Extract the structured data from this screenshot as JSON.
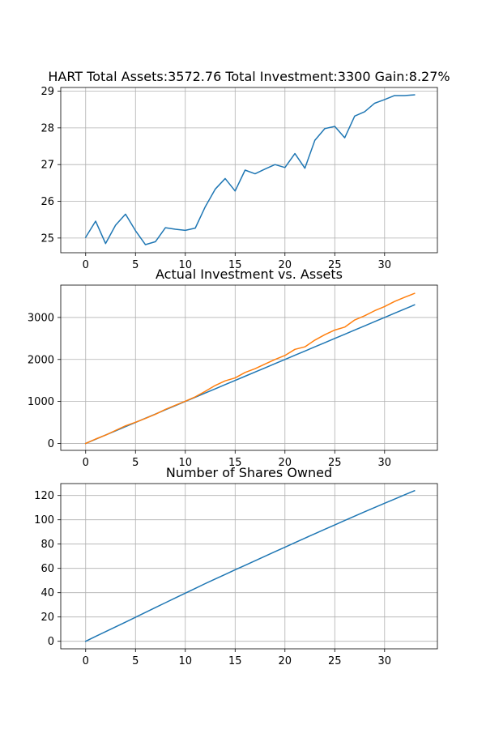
{
  "chart_data": [
    {
      "type": "line",
      "title": "HART Total Assets:3572.76  Total Investment:3300  Gain:8.27%",
      "xlabel": "",
      "ylabel": "",
      "xlim": [
        -2.5,
        35.3
      ],
      "ylim": [
        24.6,
        29.1
      ],
      "xticks": [
        0,
        5,
        10,
        15,
        20,
        25,
        30
      ],
      "yticks": [
        25,
        26,
        27,
        28,
        29
      ],
      "grid": true,
      "series": [
        {
          "color": "#1f77b4",
          "x": [
            0,
            1,
            2,
            3,
            4,
            5,
            6,
            7,
            8,
            9,
            10,
            11,
            12,
            13,
            14,
            15,
            16,
            17,
            18,
            19,
            20,
            21,
            22,
            23,
            24,
            25,
            26,
            27,
            28,
            29,
            30,
            31,
            32,
            33
          ],
          "values": [
            25.02,
            25.46,
            24.85,
            25.35,
            25.65,
            25.2,
            24.82,
            24.9,
            25.28,
            25.24,
            25.21,
            25.27,
            25.85,
            26.33,
            26.62,
            26.28,
            26.85,
            26.75,
            26.88,
            27.0,
            26.92,
            27.3,
            26.9,
            27.66,
            27.98,
            28.04,
            27.73,
            28.32,
            28.44,
            28.67,
            28.77,
            28.88,
            28.88,
            28.9
          ]
        }
      ]
    },
    {
      "type": "line",
      "title": "Actual Investment vs. Assets",
      "xlabel": "",
      "ylabel": "",
      "xlim": [
        -2.5,
        35.3
      ],
      "ylim": [
        -165,
        3770
      ],
      "xticks": [
        0,
        5,
        10,
        15,
        20,
        25,
        30
      ],
      "yticks": [
        0,
        1000,
        2000,
        3000
      ],
      "grid": true,
      "series": [
        {
          "color": "#1f77b4",
          "x": [
            0,
            1,
            2,
            3,
            4,
            5,
            6,
            7,
            8,
            9,
            10,
            11,
            12,
            13,
            14,
            15,
            16,
            17,
            18,
            19,
            20,
            21,
            22,
            23,
            24,
            25,
            26,
            27,
            28,
            29,
            30,
            31,
            32,
            33
          ],
          "values": [
            0,
            100,
            200,
            300,
            400,
            500,
            600,
            700,
            800,
            900,
            1000,
            1100,
            1200,
            1300,
            1400,
            1500,
            1600,
            1700,
            1800,
            1900,
            2000,
            2100,
            2200,
            2300,
            2400,
            2500,
            2600,
            2700,
            2800,
            2900,
            3000,
            3100,
            3200,
            3300
          ]
        },
        {
          "color": "#ff7f0e",
          "x": [
            0,
            1,
            2,
            3,
            4,
            5,
            6,
            7,
            8,
            9,
            10,
            11,
            12,
            13,
            14,
            15,
            16,
            17,
            18,
            19,
            20,
            21,
            22,
            23,
            24,
            25,
            26,
            27,
            28,
            29,
            30,
            31,
            32,
            33
          ],
          "values": [
            0,
            105,
            198,
            310,
            420,
            505,
            595,
            695,
            810,
            910,
            1005,
            1110,
            1240,
            1380,
            1490,
            1560,
            1690,
            1780,
            1890,
            2000,
            2095,
            2240,
            2300,
            2460,
            2590,
            2700,
            2770,
            2940,
            3040,
            3160,
            3260,
            3380,
            3480,
            3572.76
          ]
        }
      ]
    },
    {
      "type": "line",
      "title": "Number of Shares Owned",
      "xlabel": "",
      "ylabel": "",
      "xlim": [
        -2.5,
        35.3
      ],
      "ylim": [
        -6.2,
        129.8
      ],
      "xticks": [
        0,
        5,
        10,
        15,
        20,
        25,
        30
      ],
      "yticks": [
        0,
        20,
        40,
        60,
        80,
        100,
        120
      ],
      "grid": true,
      "series": [
        {
          "color": "#1f77b4",
          "x": [
            0,
            1,
            2,
            3,
            4,
            5,
            6,
            7,
            8,
            9,
            10,
            11,
            12,
            13,
            14,
            15,
            16,
            17,
            18,
            19,
            20,
            21,
            22,
            23,
            24,
            25,
            26,
            27,
            28,
            29,
            30,
            31,
            32,
            33
          ],
          "values": [
            0,
            3.99,
            7.92,
            11.84,
            15.76,
            19.73,
            23.75,
            27.77,
            31.72,
            35.65,
            39.61,
            43.54,
            47.46,
            51.28,
            55.04,
            58.84,
            62.55,
            66.28,
            70.02,
            73.73,
            77.46,
            81.17,
            84.88,
            88.55,
            92.17,
            95.78,
            99.43,
            103.02,
            106.56,
            110.08,
            113.57,
            117.04,
            120.49,
            123.93
          ]
        }
      ]
    }
  ]
}
